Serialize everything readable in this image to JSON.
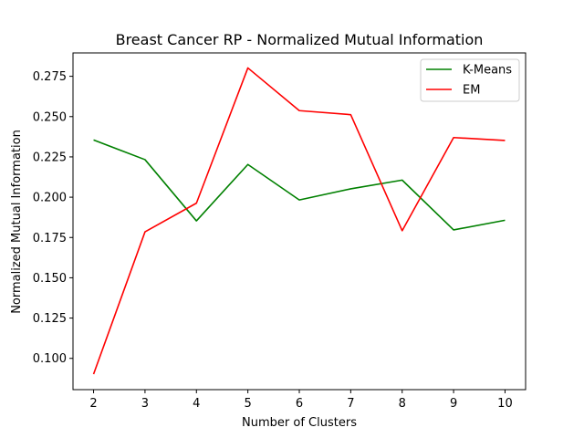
{
  "chart_data": {
    "type": "line",
    "title": "Breast Cancer RP - Normalized Mutual Information",
    "xlabel": "Number of Clusters",
    "ylabel": "Normalized Mutual Information",
    "x": [
      2,
      3,
      4,
      5,
      6,
      7,
      8,
      9,
      10
    ],
    "xlim": [
      1.6,
      10.4
    ],
    "ylim": [
      0.0806,
      0.2895
    ],
    "x_ticks": [
      "2",
      "3",
      "4",
      "5",
      "6",
      "7",
      "8",
      "9",
      "10"
    ],
    "y_ticks": [
      0.1,
      0.125,
      0.15,
      0.175,
      0.2,
      0.225,
      0.25,
      0.275
    ],
    "y_tick_labels": [
      "0.100",
      "0.125",
      "0.150",
      "0.175",
      "0.200",
      "0.225",
      "0.250",
      "0.275"
    ],
    "grid": false,
    "legend_position": "top-right",
    "series": [
      {
        "name": "K-Means",
        "color": "#008000",
        "values": [
          0.2355,
          0.2233,
          0.1853,
          0.2203,
          0.1983,
          0.2052,
          0.2106,
          0.1797,
          0.1857
        ]
      },
      {
        "name": "EM",
        "color": "#ff0000",
        "values": [
          0.0902,
          0.1785,
          0.1963,
          0.2802,
          0.2537,
          0.2512,
          0.1792,
          0.237,
          0.2352
        ]
      }
    ]
  }
}
